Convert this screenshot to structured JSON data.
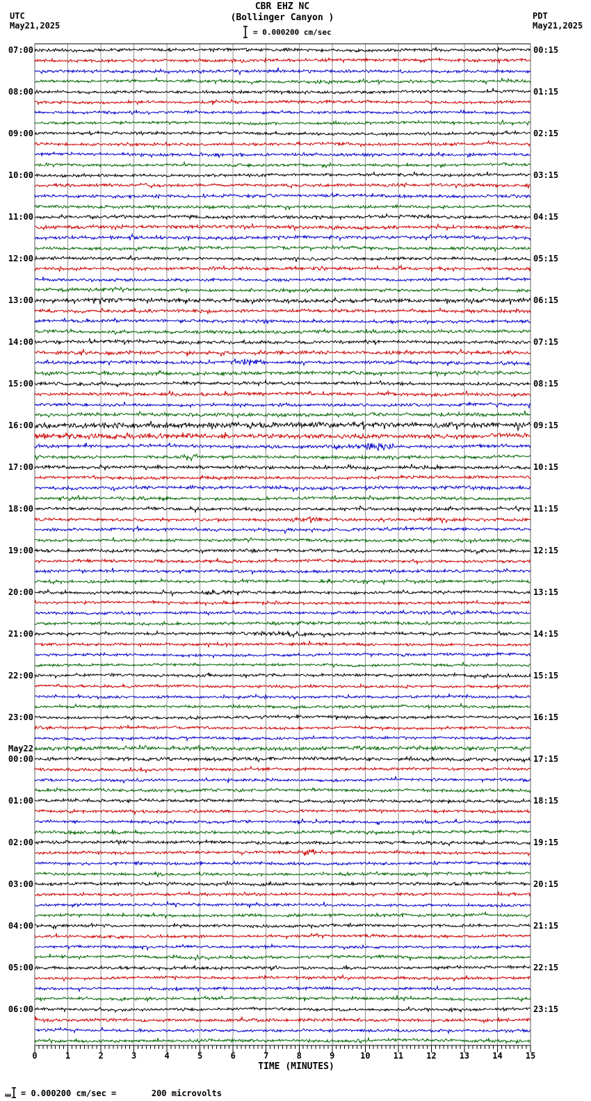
{
  "header": {
    "title": "CBR EHZ NC",
    "subtitle": "(Bollinger Canyon )",
    "scale_label": "= 0.000200 cm/sec",
    "left_tz": "UTC",
    "left_date": "May21,2025",
    "right_tz": "PDT",
    "right_date": "May21,2025"
  },
  "footer": {
    "xlabel": "TIME (MINUTES)",
    "note": "= 0.000200 cm/sec =       200 microvolts"
  },
  "axis": {
    "tick_labels": [
      "0",
      "1",
      "2",
      "3",
      "4",
      "5",
      "6",
      "7",
      "8",
      "9",
      "10",
      "11",
      "12",
      "13",
      "14",
      "15"
    ],
    "minutes_per_row": 15,
    "minor_ticks_per_minute": 8
  },
  "colors": {
    "black": "#000000",
    "red": "#cc0000",
    "blue": "#0000cc",
    "green": "#006600",
    "grid": "#909090",
    "edge": "#606060",
    "frame": "#000000"
  },
  "chart_data": {
    "type": "line",
    "title": "CBR EHZ NC (Bollinger Canyon ) helicorder",
    "xlabel": "TIME (MINUTES)",
    "x_range": [
      0,
      15
    ],
    "trace_order_colors": [
      "black",
      "red",
      "blue",
      "green"
    ],
    "row_duration_minutes": 15,
    "utc_start": "May21,2025 07:00",
    "utc_end": "May22,2025 07:00",
    "amplitude_scale": "0.000200 cm/sec = 200 microvolts",
    "rows": [
      {
        "l": "07:00",
        "r": "00:15",
        "c": "black",
        "a": 1.8
      },
      {
        "c": "red",
        "a": 1.8
      },
      {
        "c": "blue",
        "a": 1.8
      },
      {
        "c": "green",
        "a": 1.7
      },
      {
        "l": "08:00",
        "r": "01:15",
        "c": "black",
        "a": 1.7
      },
      {
        "c": "red",
        "a": 1.7
      },
      {
        "c": "blue",
        "a": 1.6
      },
      {
        "c": "green",
        "a": 1.6
      },
      {
        "l": "09:00",
        "r": "02:15",
        "c": "black",
        "a": 1.7
      },
      {
        "c": "red",
        "a": 1.7
      },
      {
        "c": "blue",
        "a": 1.8
      },
      {
        "c": "green",
        "a": 1.6
      },
      {
        "l": "10:00",
        "r": "03:15",
        "c": "black",
        "a": 1.7
      },
      {
        "c": "red",
        "a": 1.8
      },
      {
        "c": "blue",
        "a": 1.8
      },
      {
        "c": "green",
        "a": 1.7
      },
      {
        "l": "11:00",
        "r": "04:15",
        "c": "black",
        "a": 1.8
      },
      {
        "c": "red",
        "a": 2.0
      },
      {
        "c": "blue",
        "a": 1.9
      },
      {
        "c": "green",
        "a": 1.8
      },
      {
        "l": "12:00",
        "r": "05:15",
        "c": "black",
        "a": 1.8
      },
      {
        "c": "red",
        "a": 1.8
      },
      {
        "c": "blue",
        "a": 1.7
      },
      {
        "c": "green",
        "a": 1.8
      },
      {
        "l": "13:00",
        "r": "06:15",
        "c": "black",
        "a": 2.4
      },
      {
        "c": "red",
        "a": 1.9
      },
      {
        "c": "blue",
        "a": 1.8
      },
      {
        "c": "green",
        "a": 1.9
      },
      {
        "l": "14:00",
        "r": "07:15",
        "c": "black",
        "a": 2.0
      },
      {
        "c": "red",
        "a": 2.0
      },
      {
        "c": "blue",
        "a": 1.9,
        "e": [
          [
            6.4,
            4,
            0.5
          ]
        ]
      },
      {
        "c": "green",
        "a": 2.0
      },
      {
        "l": "15:00",
        "r": "08:15",
        "c": "black",
        "a": 1.9
      },
      {
        "c": "red",
        "a": 1.9
      },
      {
        "c": "blue",
        "a": 1.8
      },
      {
        "c": "green",
        "a": 2.0
      },
      {
        "l": "16:00",
        "r": "09:15",
        "c": "black",
        "a": 3.3
      },
      {
        "c": "red",
        "a": 2.8,
        "e": [
          [
            1.5,
            2.5,
            2.5
          ]
        ]
      },
      {
        "c": "blue",
        "a": 2.0,
        "e": [
          [
            10.3,
            5,
            0.6
          ]
        ]
      },
      {
        "c": "green",
        "a": 1.9,
        "e": [
          [
            4.7,
            4,
            0.35
          ]
        ]
      },
      {
        "l": "17:00",
        "r": "10:15",
        "c": "black",
        "a": 2.0
      },
      {
        "c": "red",
        "a": 1.8
      },
      {
        "c": "blue",
        "a": 1.8
      },
      {
        "c": "green",
        "a": 1.8
      },
      {
        "l": "18:00",
        "r": "11:15",
        "c": "black",
        "a": 1.8
      },
      {
        "c": "red",
        "a": 1.8,
        "e": [
          [
            8.3,
            3,
            0.5
          ]
        ]
      },
      {
        "c": "blue",
        "a": 1.8
      },
      {
        "c": "green",
        "a": 1.7
      },
      {
        "l": "19:00",
        "r": "12:15",
        "c": "black",
        "a": 1.9
      },
      {
        "c": "red",
        "a": 1.7
      },
      {
        "c": "blue",
        "a": 1.7
      },
      {
        "c": "green",
        "a": 1.7
      },
      {
        "l": "20:00",
        "r": "13:15",
        "c": "black",
        "a": 1.7,
        "e": [
          [
            5.4,
            3,
            0.7
          ]
        ]
      },
      {
        "c": "red",
        "a": 1.6
      },
      {
        "c": "blue",
        "a": 1.7,
        "e": [
          [
            12.8,
            2.5,
            0.5
          ]
        ]
      },
      {
        "c": "green",
        "a": 1.7,
        "e": [
          [
            8.0,
            2,
            0.6
          ]
        ]
      },
      {
        "l": "21:00",
        "r": "14:15",
        "c": "black",
        "a": 1.7,
        "e": [
          [
            7.6,
            3,
            0.9
          ]
        ]
      },
      {
        "c": "red",
        "a": 1.6
      },
      {
        "c": "blue",
        "a": 1.6
      },
      {
        "c": "green",
        "a": 1.6
      },
      {
        "l": "22:00",
        "r": "15:15",
        "c": "black",
        "a": 1.7
      },
      {
        "c": "red",
        "a": 1.6
      },
      {
        "c": "blue",
        "a": 1.5
      },
      {
        "c": "green",
        "a": 1.6
      },
      {
        "l": "23:00",
        "r": "16:15",
        "c": "black",
        "a": 1.6
      },
      {
        "c": "red",
        "a": 1.6
      },
      {
        "c": "blue",
        "a": 1.6
      },
      {
        "l": "May22",
        "c": "green",
        "a": 2.2
      },
      {
        "l": "00:00",
        "r": "17:15",
        "c": "black",
        "a": 2.0
      },
      {
        "c": "red",
        "a": 1.7
      },
      {
        "c": "blue",
        "a": 1.7
      },
      {
        "c": "green",
        "a": 1.8
      },
      {
        "l": "01:00",
        "r": "18:15",
        "c": "black",
        "a": 1.8
      },
      {
        "c": "red",
        "a": 1.7
      },
      {
        "c": "blue",
        "a": 1.7
      },
      {
        "c": "green",
        "a": 1.8
      },
      {
        "l": "02:00",
        "r": "19:15",
        "c": "black",
        "a": 1.8
      },
      {
        "c": "red",
        "a": 1.7,
        "e": [
          [
            8.3,
            3.5,
            0.45
          ]
        ]
      },
      {
        "c": "blue",
        "a": 1.7
      },
      {
        "c": "green",
        "a": 1.7
      },
      {
        "l": "03:00",
        "r": "20:15",
        "c": "black",
        "a": 1.8
      },
      {
        "c": "red",
        "a": 1.7
      },
      {
        "c": "blue",
        "a": 1.7,
        "e": [
          [
            1.4,
            2.5,
            0.4
          ]
        ]
      },
      {
        "c": "green",
        "a": 1.7
      },
      {
        "l": "04:00",
        "r": "21:15",
        "c": "black",
        "a": 1.7
      },
      {
        "c": "red",
        "a": 1.7
      },
      {
        "c": "blue",
        "a": 1.6
      },
      {
        "c": "green",
        "a": 1.7
      },
      {
        "l": "05:00",
        "r": "22:15",
        "c": "black",
        "a": 1.7
      },
      {
        "c": "red",
        "a": 1.7
      },
      {
        "c": "blue",
        "a": 1.7
      },
      {
        "c": "green",
        "a": 1.7
      },
      {
        "l": "06:00",
        "r": "23:15",
        "c": "black",
        "a": 1.7
      },
      {
        "c": "red",
        "a": 1.8
      },
      {
        "c": "blue",
        "a": 1.7
      },
      {
        "c": "green",
        "a": 1.7
      }
    ]
  }
}
